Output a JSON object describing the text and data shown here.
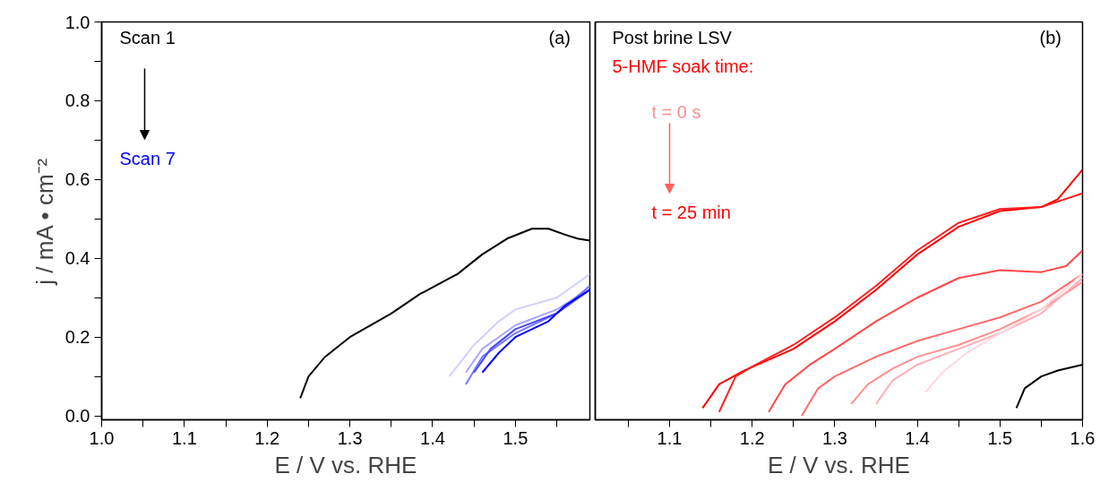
{
  "chart_data": [
    {
      "type": "line",
      "xlabel": "E / V vs. RHE",
      "ylabel": "j / mA • cm⁻²",
      "xlim": [
        1.0,
        1.59
      ],
      "ylim": [
        -0.01,
        1.0
      ],
      "xticks": [
        {
          "value": 1.0,
          "label": "1.0"
        },
        {
          "value": 1.05,
          "label": null
        },
        1.1,
        {
          "value": 1.15,
          "label": null
        },
        1.2,
        {
          "value": 1.25,
          "label": null
        },
        1.3,
        {
          "value": 1.35,
          "label": null
        },
        1.4,
        {
          "value": 1.45,
          "label": null
        },
        1.5,
        {
          "value": 1.55,
          "label": null
        }
      ],
      "yticks": [
        {
          "value": 0.0,
          "label": "0.0"
        },
        {
          "value": 0.1,
          "label": null
        },
        0.2,
        {
          "value": 0.3,
          "label": null
        },
        0.4,
        {
          "value": 0.5,
          "label": null
        },
        0.6,
        {
          "value": 0.7,
          "label": null
        },
        0.8,
        {
          "value": 0.9,
          "label": null
        },
        {
          "value": 1.0,
          "label": "1.0"
        }
      ],
      "grid": false,
      "line_style": "solid",
      "marker": "none",
      "annotations": [
        "Scan 1",
        "Scan 7",
        "(a)"
      ],
      "series": [
        {
          "color": "#000000",
          "x": [
            1.24,
            1.25,
            1.27,
            1.3,
            1.35,
            1.385,
            1.39,
            1.43,
            1.46,
            1.49,
            1.52,
            1.54,
            1.56,
            1.575,
            1.59
          ],
          "values": [
            0.045,
            0.1,
            0.15,
            0.2,
            0.26,
            0.31,
            0.315,
            0.36,
            0.41,
            0.45,
            0.475,
            0.475,
            0.46,
            0.45,
            0.445
          ]
        },
        {
          "color": "#d0d0ff",
          "x": [
            1.42,
            1.45,
            1.48,
            1.5,
            1.55,
            1.59
          ],
          "values": [
            0.1,
            0.18,
            0.24,
            0.27,
            0.3,
            0.36
          ]
        },
        {
          "color": "#a8a8ff",
          "x": [
            1.44,
            1.46,
            1.5,
            1.55,
            1.58,
            1.59
          ],
          "values": [
            0.11,
            0.17,
            0.23,
            0.27,
            0.31,
            0.33
          ]
        },
        {
          "color": "#7878ff",
          "x": [
            1.44,
            1.46,
            1.5,
            1.55,
            1.59
          ],
          "values": [
            0.08,
            0.15,
            0.21,
            0.26,
            0.33
          ]
        },
        {
          "color": "#4848ff",
          "x": [
            1.45,
            1.47,
            1.5,
            1.55,
            1.59
          ],
          "values": [
            0.11,
            0.17,
            0.22,
            0.26,
            0.32
          ]
        },
        {
          "color": "#0000ff",
          "x": [
            1.46,
            1.48,
            1.5,
            1.54,
            1.56,
            1.59
          ],
          "values": [
            0.11,
            0.16,
            0.2,
            0.24,
            0.28,
            0.32
          ]
        }
      ]
    },
    {
      "type": "line",
      "xlabel": "E / V vs. RHE",
      "tick_labels": "x",
      "xlim": [
        1.01,
        1.6
      ],
      "ylim": [
        -0.01,
        1.0
      ],
      "xticks": [
        {
          "value": 1.05,
          "label": null
        },
        1.1,
        {
          "value": 1.15,
          "label": null
        },
        1.2,
        {
          "value": 1.25,
          "label": null
        },
        1.3,
        {
          "value": 1.35,
          "label": null
        },
        1.4,
        {
          "value": 1.45,
          "label": null
        },
        1.5,
        {
          "value": 1.55,
          "label": null
        },
        1.6
      ],
      "grid": false,
      "line_style": "solid",
      "marker": "none",
      "annotations": [
        "Post brine LSV",
        "5-HMF soak time:",
        "t = 0 s",
        "t = 25 min",
        "(b)"
      ],
      "series": [
        {
          "color": "#ff0000",
          "x": [
            1.14,
            1.16,
            1.19,
            1.25,
            1.3,
            1.35,
            1.4,
            1.45,
            1.5,
            1.55,
            1.57,
            1.6
          ],
          "values": [
            0.02,
            0.08,
            0.115,
            0.17,
            0.24,
            0.32,
            0.41,
            0.48,
            0.52,
            0.53,
            0.55,
            0.625
          ]
        },
        {
          "color": "#ff2020",
          "x": [
            1.16,
            1.18,
            1.2,
            1.25,
            1.3,
            1.35,
            1.4,
            1.45,
            1.5,
            1.55,
            1.6
          ],
          "values": [
            0.01,
            0.1,
            0.125,
            0.18,
            0.25,
            0.33,
            0.42,
            0.49,
            0.525,
            0.53,
            0.565
          ]
        },
        {
          "color": "#ff4848",
          "x": [
            1.22,
            1.24,
            1.27,
            1.3,
            1.35,
            1.4,
            1.45,
            1.5,
            1.55,
            1.58,
            1.6
          ],
          "values": [
            0.01,
            0.08,
            0.13,
            0.17,
            0.24,
            0.3,
            0.35,
            0.37,
            0.365,
            0.38,
            0.42
          ]
        },
        {
          "color": "#ff6a6a",
          "x": [
            1.26,
            1.28,
            1.3,
            1.35,
            1.4,
            1.45,
            1.5,
            1.55,
            1.6
          ],
          "values": [
            0.0,
            0.07,
            0.1,
            0.15,
            0.19,
            0.22,
            0.25,
            0.29,
            0.36
          ]
        },
        {
          "color": "#ff9090",
          "x": [
            1.32,
            1.34,
            1.37,
            1.4,
            1.45,
            1.5,
            1.55,
            1.6
          ],
          "values": [
            0.03,
            0.08,
            0.12,
            0.15,
            0.18,
            0.22,
            0.27,
            0.34
          ]
        },
        {
          "color": "#ffb0b8",
          "x": [
            1.35,
            1.37,
            1.4,
            1.45,
            1.5,
            1.55,
            1.6
          ],
          "values": [
            0.03,
            0.09,
            0.13,
            0.17,
            0.21,
            0.26,
            0.35
          ]
        },
        {
          "color": "#ffd8dc",
          "x": [
            1.41,
            1.43,
            1.46,
            1.5,
            1.55,
            1.6
          ],
          "values": [
            0.06,
            0.11,
            0.16,
            0.21,
            0.27,
            0.36
          ]
        },
        {
          "color": "#000000",
          "x": [
            1.52,
            1.53,
            1.55,
            1.57,
            1.6
          ],
          "values": [
            0.02,
            0.07,
            0.1,
            0.115,
            0.13
          ]
        }
      ]
    }
  ]
}
